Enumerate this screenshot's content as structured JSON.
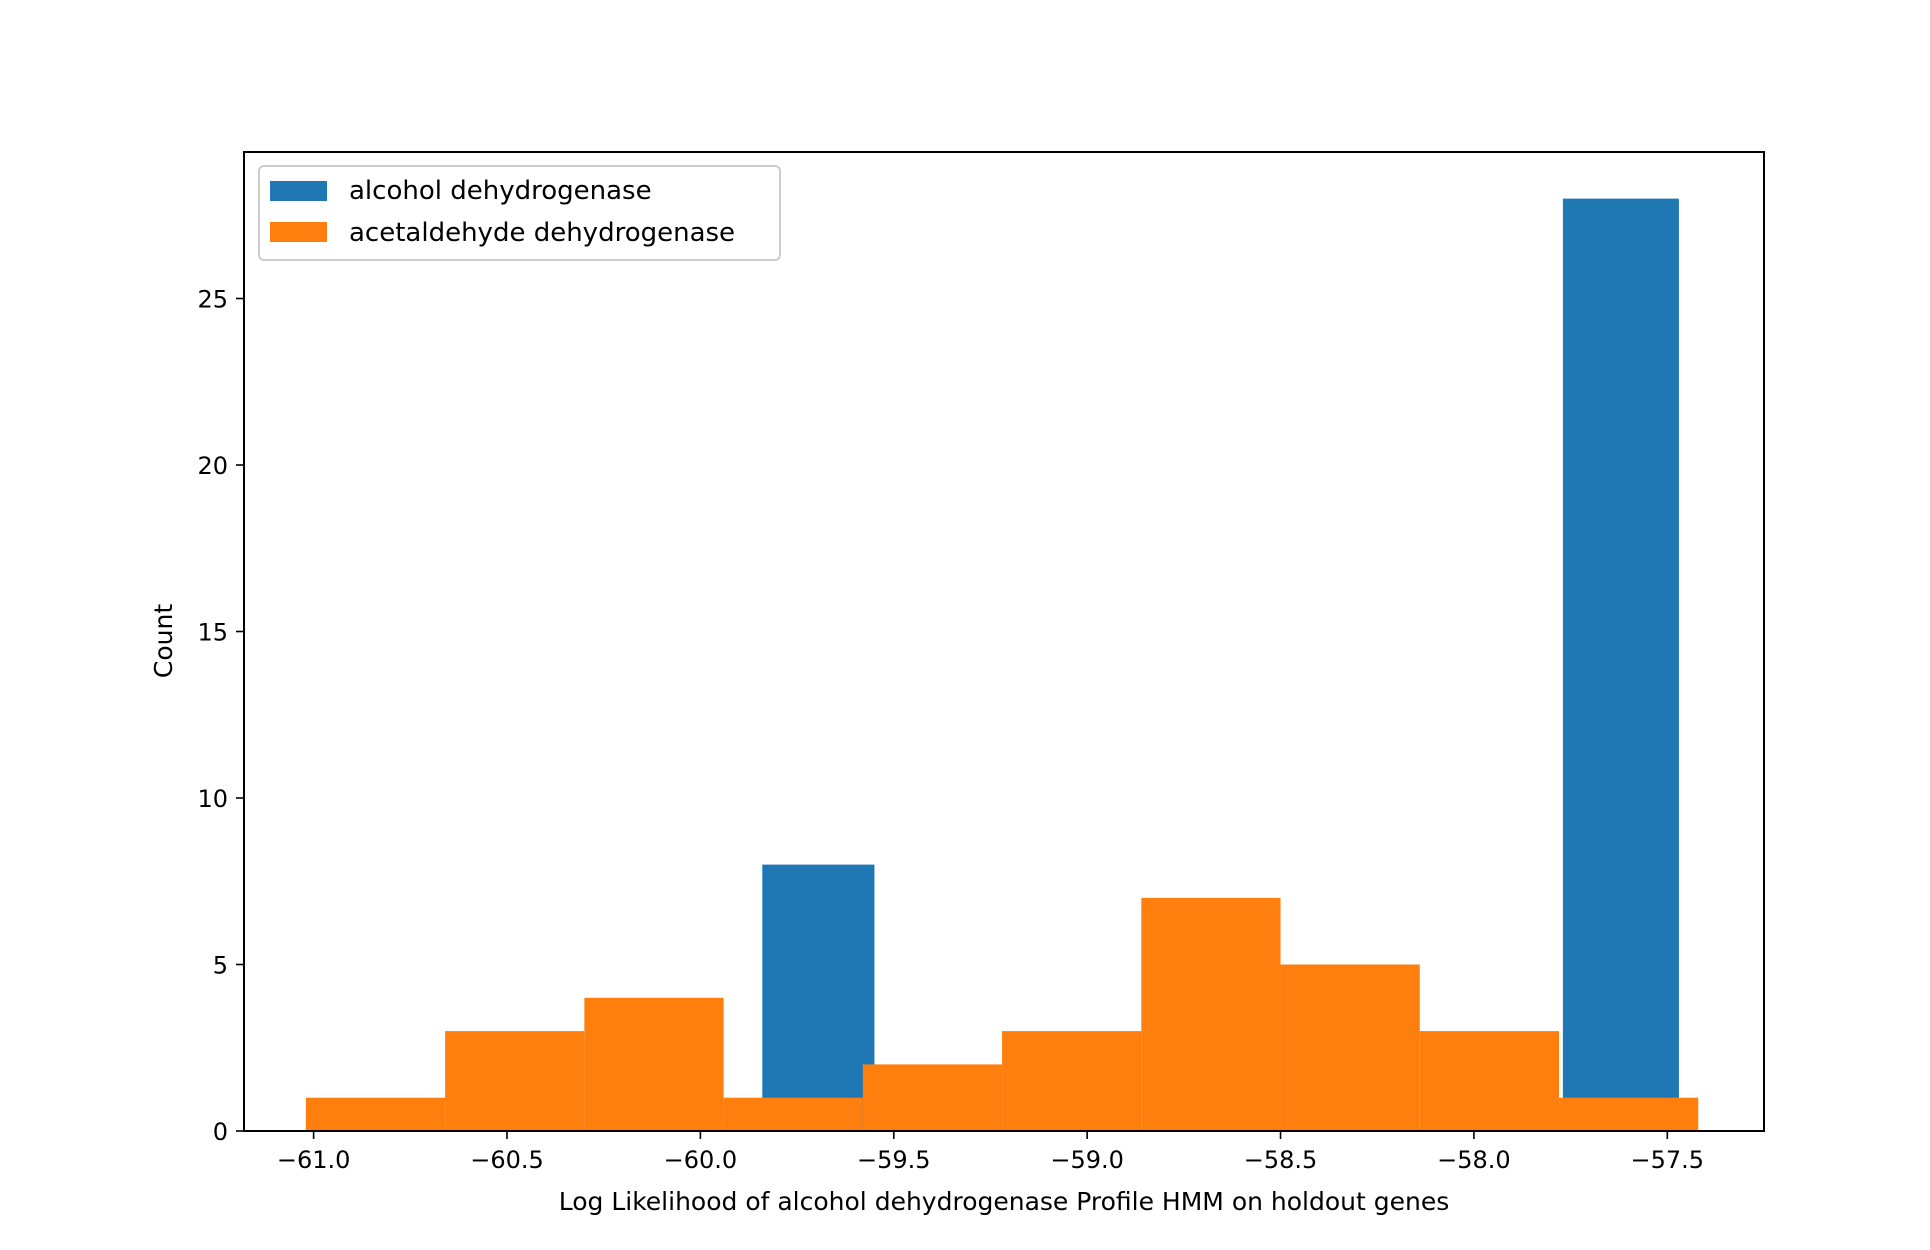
{
  "chart_data": {
    "type": "bar",
    "title": "",
    "xlabel": "Log Likelihood of alcohol dehydrogenase Profile HMM on holdout genes",
    "ylabel": "Count",
    "xlim": [
      -61.18,
      -57.25
    ],
    "ylim": [
      0,
      29.4
    ],
    "xticks": [
      -61.0,
      -60.5,
      -60.0,
      -59.5,
      -59.0,
      -58.5,
      -58.0,
      -57.5
    ],
    "xtick_labels": [
      "−61.0",
      "−60.5",
      "−60.0",
      "−59.5",
      "−59.0",
      "−58.5",
      "−58.0",
      "−57.5"
    ],
    "yticks": [
      0,
      5,
      10,
      15,
      20,
      25
    ],
    "ytick_labels": [
      "0",
      "5",
      "10",
      "15",
      "20",
      "25"
    ],
    "grid": false,
    "legend_position": "top-left",
    "series": [
      {
        "name": "alcohol dehydrogenase",
        "color": "#1f77b4",
        "bins": [
          {
            "x0": -59.84,
            "x1": -59.55,
            "count": 8
          },
          {
            "x0": -57.77,
            "x1": -57.47,
            "count": 28
          }
        ]
      },
      {
        "name": "acetaldehyde dehydrogenase",
        "color": "#ff7f0e",
        "bins": [
          {
            "x0": -61.02,
            "x1": -60.66,
            "count": 1
          },
          {
            "x0": -60.66,
            "x1": -60.3,
            "count": 3
          },
          {
            "x0": -60.3,
            "x1": -59.94,
            "count": 4
          },
          {
            "x0": -59.94,
            "x1": -59.58,
            "count": 1
          },
          {
            "x0": -59.58,
            "x1": -59.22,
            "count": 2
          },
          {
            "x0": -59.22,
            "x1": -58.86,
            "count": 3
          },
          {
            "x0": -58.86,
            "x1": -58.5,
            "count": 7
          },
          {
            "x0": -58.5,
            "x1": -58.14,
            "count": 5
          },
          {
            "x0": -58.14,
            "x1": -57.78,
            "count": 3
          },
          {
            "x0": -57.78,
            "x1": -57.42,
            "count": 1
          }
        ]
      }
    ]
  }
}
